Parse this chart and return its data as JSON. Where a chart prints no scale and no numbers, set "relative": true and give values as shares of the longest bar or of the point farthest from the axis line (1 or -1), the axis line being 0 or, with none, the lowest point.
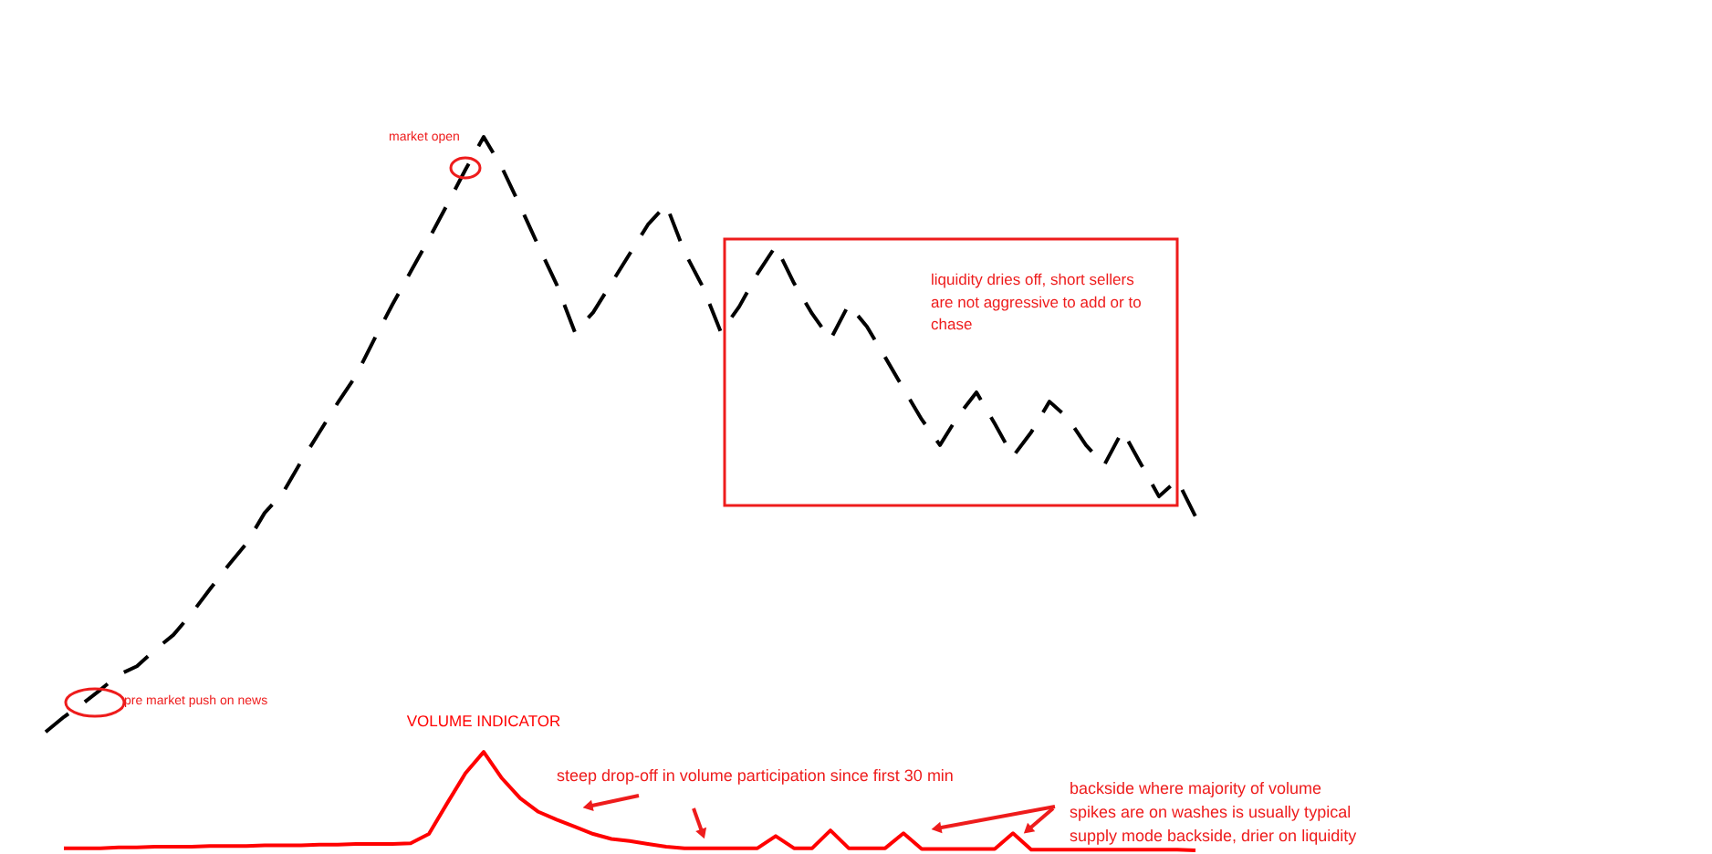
{
  "chart_data": {
    "type": "line",
    "relative": true,
    "categories": [
      null,
      null,
      null,
      null,
      null,
      null,
      null,
      null,
      null,
      null,
      null,
      null,
      null,
      null,
      null,
      null,
      null,
      null,
      null,
      null,
      null,
      null,
      null,
      null,
      null,
      null,
      null,
      null,
      null,
      null,
      null,
      null,
      null,
      null,
      null,
      null,
      null,
      null,
      null,
      null,
      null,
      null,
      null,
      null,
      null,
      null,
      null,
      null,
      null,
      null,
      null,
      null,
      null,
      null,
      null,
      null,
      null,
      null,
      null,
      null,
      null,
      null,
      null,
      null
    ],
    "series": [
      {
        "color": "#000000",
        "line_style": "dashed",
        "values": [
          0.166,
          0.187,
          0.205,
          0.225,
          0.246,
          0.258,
          0.281,
          0.302,
          0.332,
          0.366,
          0.399,
          0.43,
          0.473,
          0.501,
          0.545,
          0.586,
          0.627,
          0.665,
          0.716,
          0.765,
          0.811,
          0.857,
          0.905,
          0.954,
          1.0,
          0.957,
          0.903,
          0.847,
          0.793,
          0.726,
          0.754,
          0.795,
          0.836,
          0.877,
          0.905,
          0.839,
          0.79,
          0.726,
          0.762,
          0.808,
          0.847,
          0.795,
          0.752,
          0.716,
          0.765,
          0.734,
          0.691,
          0.647,
          0.604,
          0.568,
          0.609,
          0.642,
          0.598,
          0.552,
          0.586,
          0.629,
          0.606,
          0.568,
          0.54,
          0.588,
          0.542,
          0.496,
          0.519,
          0.468
        ]
      },
      {
        "name": "VOLUME INDICATOR",
        "color": "#ff0000",
        "line_style": "solid",
        "values": [
          null,
          0.003,
          0.003,
          0.003,
          0.004,
          0.004,
          0.005,
          0.005,
          0.005,
          0.006,
          0.006,
          0.006,
          0.007,
          0.007,
          0.007,
          0.008,
          0.008,
          0.009,
          0.009,
          0.009,
          0.01,
          0.023,
          0.066,
          0.108,
          0.138,
          0.101,
          0.073,
          0.054,
          0.043,
          0.033,
          0.023,
          0.016,
          0.013,
          0.009,
          0.005,
          0.003,
          0.003,
          0.003,
          0.003,
          0.003,
          0.02,
          0.003,
          0.003,
          0.028,
          0.003,
          0.003,
          0.003,
          0.024,
          0.002,
          0.002,
          0.002,
          0.002,
          0.002,
          0.024,
          0.001,
          0.001,
          0.001,
          0.001,
          0.001,
          0.001,
          0.001,
          0.001,
          0.001,
          0
        ]
      }
    ],
    "annotations": [
      "market open",
      "pre market push on news",
      "liquidity dries off, short sellers are not aggressive to add or to chase",
      "steep drop-off in volume participation since first 30 min",
      "backside where majority of volume spikes are on washes is usually typical supply mode backside, drier on liquidity"
    ]
  }
}
